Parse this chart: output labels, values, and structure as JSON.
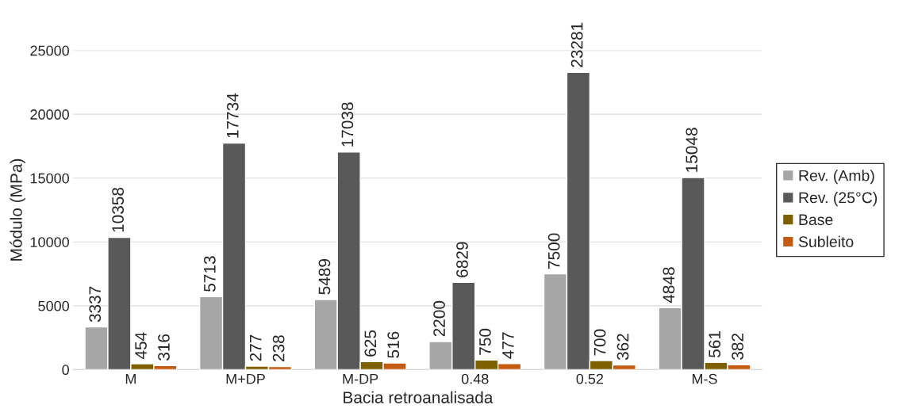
{
  "chart_data": {
    "type": "bar",
    "xlabel": "Bacia retroanalisada",
    "ylabel": "Módulo (MPa)",
    "categories": [
      "M",
      "M+DP",
      "M-DP",
      "0.48",
      "0.52",
      "M-S"
    ],
    "series": [
      {
        "name": "Rev. (Amb)",
        "color": "#a6a6a6",
        "values": [
          3337,
          5713,
          5489,
          2200,
          7500,
          4848
        ]
      },
      {
        "name": "Rev. (25°C)",
        "color": "#595959",
        "values": [
          10358,
          17734,
          17038,
          6829,
          23281,
          15048
        ]
      },
      {
        "name": "Base",
        "color": "#7f6000",
        "values": [
          454,
          277,
          625,
          750,
          700,
          561
        ]
      },
      {
        "name": "Subleito",
        "color": "#c55a11",
        "values": [
          316,
          238,
          516,
          477,
          362,
          382
        ]
      }
    ],
    "ylim": [
      0,
      25000
    ],
    "yticks": [
      0,
      5000,
      10000,
      15000,
      20000,
      25000
    ],
    "grid": "y",
    "legend": "right",
    "data_labels": true
  }
}
